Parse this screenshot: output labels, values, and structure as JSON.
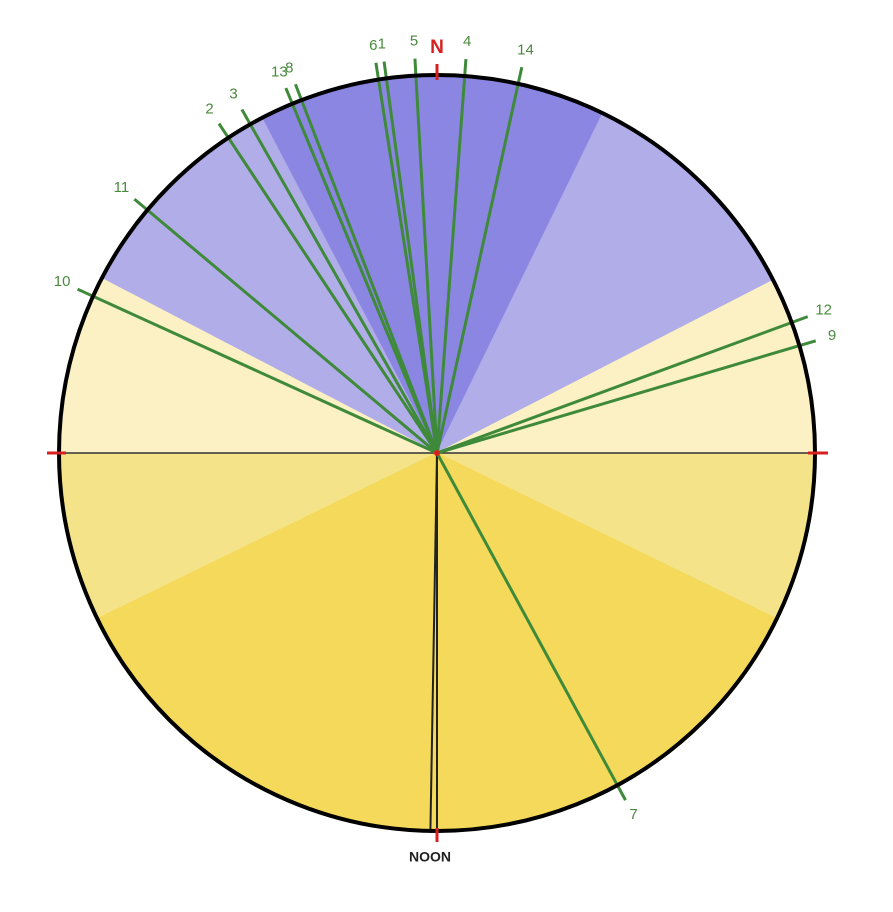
{
  "north_label": "N",
  "noon_label": "NOON",
  "lines": [
    {
      "label": "1"
    },
    {
      "label": "2"
    },
    {
      "label": "3"
    },
    {
      "label": "4"
    },
    {
      "label": "5"
    },
    {
      "label": "6"
    },
    {
      "label": "7"
    },
    {
      "label": "8"
    },
    {
      "label": "9"
    },
    {
      "label": "10"
    },
    {
      "label": "11"
    },
    {
      "label": "12"
    },
    {
      "label": "13"
    },
    {
      "label": "14"
    }
  ]
}
